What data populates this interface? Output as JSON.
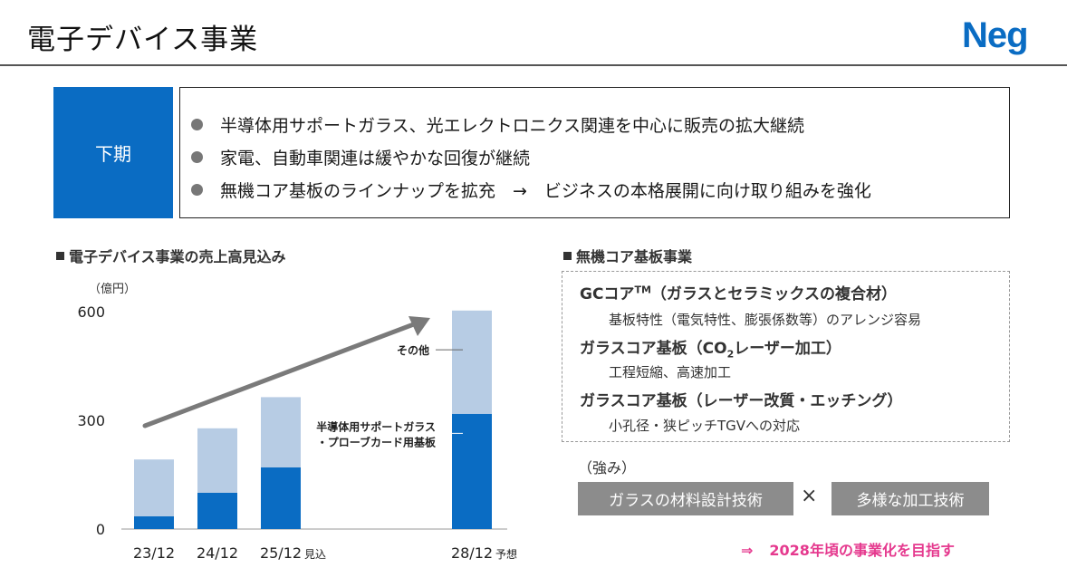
{
  "header": {
    "title": "電子デバイス事業",
    "logo_text": "Neg"
  },
  "summary": {
    "period_label": "下期",
    "items": [
      "半導体用サポートガラス、光エレクトロニクス関連を中心に販売の拡大継続",
      "家電、自動車関連は緩やかな回復が継続",
      "無機コア基板のラインナップを拡充　→　ビジネスの本格展開に向け取り組みを強化"
    ]
  },
  "left_section": {
    "heading": "電子デバイス事業の売上高見込み"
  },
  "chart_data": {
    "type": "bar",
    "stacked": true,
    "unit_label": "（億円）",
    "categories": [
      "23/12",
      "24/12",
      "25/12",
      "28/12"
    ],
    "category_suffixes": [
      "",
      "",
      "見込",
      "予想"
    ],
    "ylim": [
      0,
      600
    ],
    "yticks": [
      0,
      300,
      600
    ],
    "grid": false,
    "trend_arrow": true,
    "colors": {
      "bottom": "#0a6cc3",
      "top": "#b7cce4",
      "arrow": "#7a7a7a"
    },
    "series": [
      {
        "name": "半導体用サポートガラス・プローブカード用基板",
        "values": [
          35,
          100,
          170,
          318
        ]
      },
      {
        "name": "その他",
        "values": [
          157,
          178,
          194,
          285
        ]
      }
    ],
    "annotations": {
      "other_label": "その他",
      "semi_label_line1": "半導体用サポートガラス",
      "semi_label_line2": "・プローブカード用基板"
    }
  },
  "right_section": {
    "heading": "無機コア基板事業",
    "gc_core_title": "GCコア",
    "gc_core_tm": "TM",
    "gc_core_suffix": "（ガラスとセラミックスの複合材）",
    "gc_core_desc": "基板特性（電気特性、膨張係数等）のアレンジ容易",
    "co2_title_a": "ガラスコア基板（CO",
    "co2_title_sub": "2",
    "co2_title_b": "レーザー加工）",
    "co2_desc": "工程短縮、高速加工",
    "laser_title": "ガラスコア基板（レーザー改質・エッチング）",
    "laser_desc": "小孔径・狭ピッチTGVへの対応",
    "strength_label": "（強み）",
    "strength_left": "ガラスの材料設計技術",
    "times_symbol": "×",
    "strength_right": "多様な加工技術",
    "goal_arrow": "⇒",
    "goal_text": "2028年頃の事業化を目指す"
  },
  "colors": {
    "brand_blue": "#0a6cc3",
    "goal_pink": "#e5398e",
    "strength_gray": "#8c8c8c"
  }
}
